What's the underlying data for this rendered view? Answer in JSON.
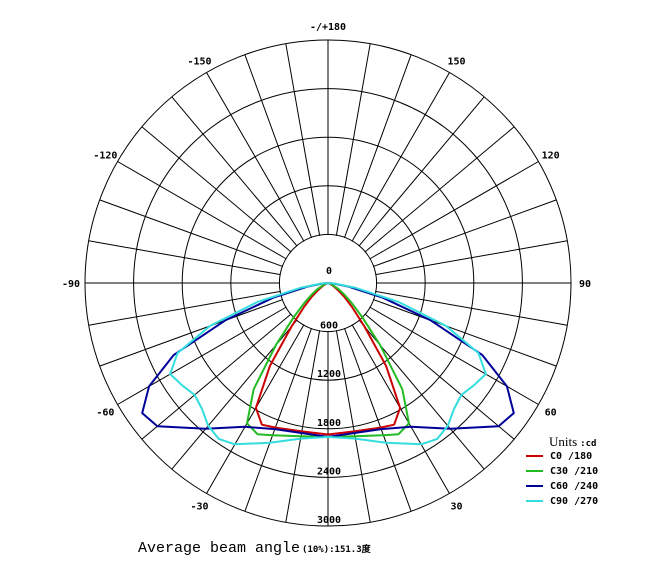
{
  "chart_data": {
    "type": "polar",
    "angle_labels": [
      {
        "angle": 180,
        "text": "-/+180"
      },
      {
        "angle": 150,
        "text": "150"
      },
      {
        "angle": -150,
        "text": "-150"
      },
      {
        "angle": 120,
        "text": "120"
      },
      {
        "angle": -120,
        "text": "-120"
      },
      {
        "angle": 90,
        "text": "90"
      },
      {
        "angle": -90,
        "text": "-90"
      },
      {
        "angle": 60,
        "text": "60"
      },
      {
        "angle": -60,
        "text": "-60"
      },
      {
        "angle": 30,
        "text": "30"
      },
      {
        "angle": -30,
        "text": "-30"
      }
    ],
    "radial_ticks": [
      0,
      600,
      1200,
      1800,
      2400,
      3000
    ],
    "r_max": 3000,
    "legend": {
      "title": "Units",
      "unit": ":cd",
      "placement": "bottom-right"
    },
    "series": [
      {
        "name": "C0",
        "pair": "/180",
        "color": "#cc0000",
        "right": [
          [
            0,
            1870
          ],
          [
            10,
            1860
          ],
          [
            20,
            1900
          ],
          [
            25,
            1930
          ],
          [
            30,
            1780
          ],
          [
            35,
            1250
          ],
          [
            40,
            700
          ],
          [
            45,
            420
          ],
          [
            50,
            260
          ],
          [
            55,
            140
          ],
          [
            60,
            80
          ],
          [
            70,
            25
          ],
          [
            80,
            5
          ],
          [
            90,
            0
          ]
        ],
        "left": [
          [
            0,
            1870
          ],
          [
            10,
            1860
          ],
          [
            20,
            1900
          ],
          [
            25,
            1930
          ],
          [
            30,
            1780
          ],
          [
            35,
            1250
          ],
          [
            40,
            700
          ],
          [
            45,
            420
          ],
          [
            50,
            260
          ],
          [
            55,
            140
          ],
          [
            60,
            80
          ],
          [
            70,
            25
          ],
          [
            80,
            5
          ],
          [
            90,
            0
          ]
        ]
      },
      {
        "name": "C30",
        "pair": "/210",
        "color": "#22bb22",
        "right": [
          [
            0,
            1900
          ],
          [
            10,
            1920
          ],
          [
            20,
            2000
          ],
          [
            25,
            2060
          ],
          [
            30,
            2000
          ],
          [
            35,
            1600
          ],
          [
            40,
            1000
          ],
          [
            45,
            600
          ],
          [
            50,
            380
          ],
          [
            55,
            240
          ],
          [
            60,
            150
          ],
          [
            70,
            50
          ],
          [
            80,
            10
          ],
          [
            90,
            0
          ]
        ],
        "left": [
          [
            0,
            1900
          ],
          [
            10,
            1920
          ],
          [
            20,
            2000
          ],
          [
            25,
            2060
          ],
          [
            30,
            2000
          ],
          [
            35,
            1600
          ],
          [
            40,
            1000
          ],
          [
            45,
            600
          ],
          [
            50,
            380
          ],
          [
            55,
            240
          ],
          [
            60,
            150
          ],
          [
            70,
            50
          ],
          [
            80,
            10
          ],
          [
            90,
            0
          ]
        ]
      },
      {
        "name": "C60",
        "pair": "/240",
        "color": "#000099",
        "right": [
          [
            0,
            1900
          ],
          [
            20,
            1920
          ],
          [
            30,
            2050
          ],
          [
            40,
            2350
          ],
          [
            50,
            2750
          ],
          [
            55,
            2800
          ],
          [
            60,
            2550
          ],
          [
            65,
            2100
          ],
          [
            70,
            1350
          ],
          [
            75,
            700
          ],
          [
            80,
            260
          ],
          [
            85,
            70
          ],
          [
            90,
            0
          ]
        ],
        "left": [
          [
            0,
            1900
          ],
          [
            20,
            1920
          ],
          [
            30,
            2050
          ],
          [
            40,
            2350
          ],
          [
            50,
            2750
          ],
          [
            55,
            2800
          ],
          [
            60,
            2550
          ],
          [
            65,
            2100
          ],
          [
            70,
            1350
          ],
          [
            75,
            700
          ],
          [
            80,
            260
          ],
          [
            85,
            70
          ],
          [
            90,
            0
          ]
        ]
      },
      {
        "name": "C90",
        "pair": "/270",
        "color": "#33dddd",
        "right": [
          [
            0,
            1900
          ],
          [
            10,
            1950
          ],
          [
            20,
            2100
          ],
          [
            30,
            2300
          ],
          [
            35,
            2350
          ],
          [
            40,
            2300
          ],
          [
            45,
            2200
          ],
          [
            50,
            2150
          ],
          [
            55,
            2200
          ],
          [
            60,
            2250
          ],
          [
            65,
            2050
          ],
          [
            70,
            1550
          ],
          [
            75,
            900
          ],
          [
            80,
            350
          ],
          [
            85,
            90
          ],
          [
            90,
            0
          ]
        ],
        "left": [
          [
            0,
            1900
          ],
          [
            10,
            1950
          ],
          [
            20,
            2100
          ],
          [
            30,
            2300
          ],
          [
            35,
            2350
          ],
          [
            40,
            2300
          ],
          [
            45,
            2200
          ],
          [
            50,
            2150
          ],
          [
            55,
            2200
          ],
          [
            60,
            2250
          ],
          [
            65,
            2050
          ],
          [
            70,
            1550
          ],
          [
            75,
            900
          ],
          [
            80,
            350
          ],
          [
            85,
            90
          ],
          [
            90,
            0
          ]
        ]
      }
    ]
  },
  "caption": {
    "main": "Average beam angle",
    "small": "(10%):151.3度"
  }
}
